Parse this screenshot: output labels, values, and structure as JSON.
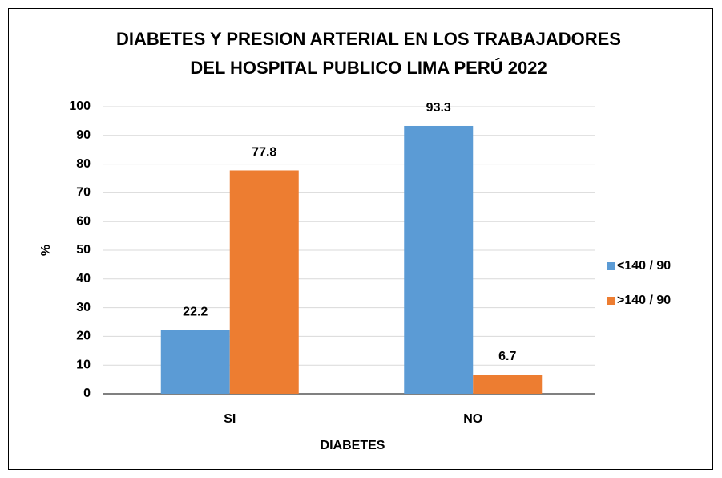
{
  "chart_data": {
    "type": "bar",
    "title": [
      "DIABETES Y PRESION ARTERIAL EN LOS TRABAJADORES",
      "DEL HOSPITAL PUBLICO LIMA PERÚ 2022"
    ],
    "x_label": "DIABETES",
    "y_label": "%",
    "categories": [
      "SI",
      "NO"
    ],
    "series": [
      {
        "name": "<140 / 90",
        "color": "#5b9bd5",
        "values": [
          22.2,
          93.3
        ]
      },
      {
        "name": ">140 / 90",
        "color": "#ed7d31",
        "values": [
          77.8,
          6.7
        ]
      }
    ],
    "ylim": [
      0,
      100
    ],
    "yticks": [
      0,
      10,
      20,
      30,
      40,
      50,
      60,
      70,
      80,
      90,
      100
    ],
    "grid": true,
    "legend": "right"
  }
}
